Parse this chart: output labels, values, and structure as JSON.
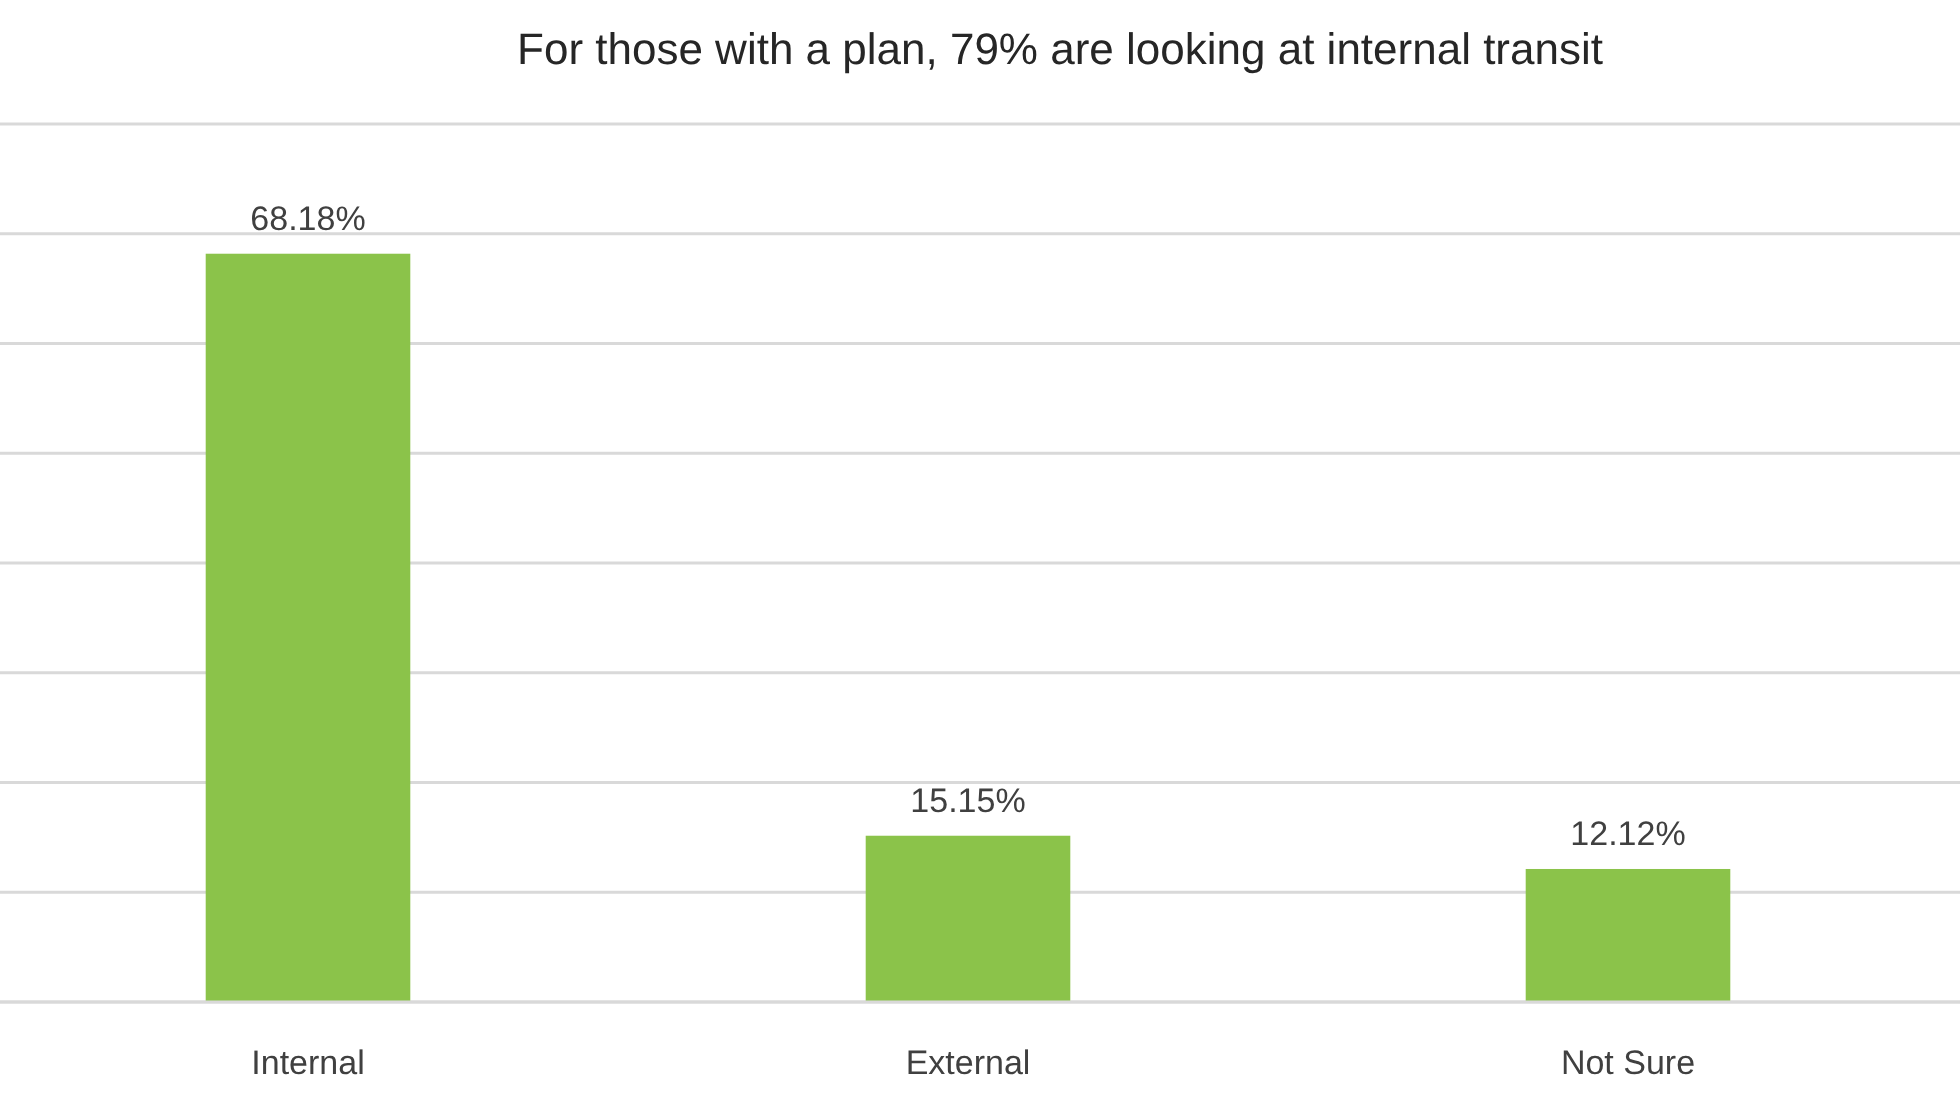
{
  "chart_data": {
    "type": "bar",
    "title": "For those with a plan, 79% are looking at internal transit",
    "categories": [
      "Internal",
      "External",
      "Not Sure"
    ],
    "values": [
      68.18,
      15.15,
      12.12
    ],
    "value_labels": [
      "68.18%",
      "15.15%",
      "12.12%"
    ],
    "color": "#8bc34a",
    "ylim": [
      0,
      80
    ],
    "yticks": [
      {
        "value": 0,
        "label": null
      },
      {
        "value": 10,
        "label": null
      },
      {
        "value": 20,
        "label": null
      },
      {
        "value": 30,
        "label": null
      },
      {
        "value": 40,
        "label": null
      },
      {
        "value": 50,
        "label": null
      },
      {
        "value": 60,
        "label": null
      },
      {
        "value": 70,
        "label": null
      },
      {
        "value": 80,
        "label": null
      }
    ],
    "grid": "y",
    "tick_labels": "x"
  }
}
